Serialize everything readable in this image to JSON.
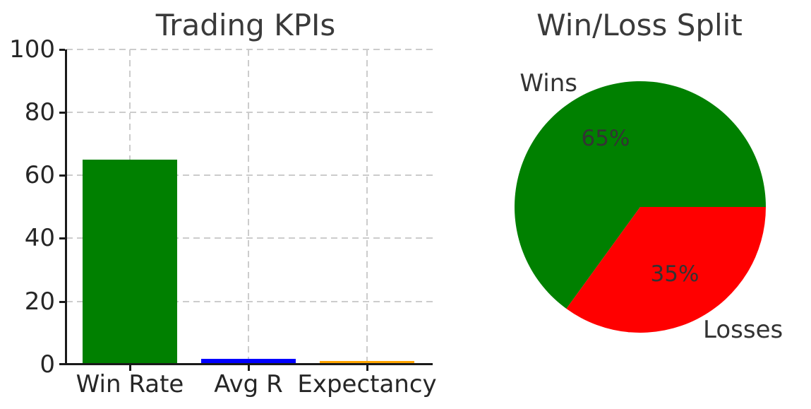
{
  "figure": {
    "background": "#ffffff",
    "text_color": "#333333"
  },
  "chart_data": [
    {
      "type": "bar",
      "title": "Trading KPIs",
      "categories": [
        "Win Rate",
        "Avg R",
        "Expectancy"
      ],
      "values": [
        65,
        1.7,
        1.2
      ],
      "bar_colors": [
        "#008000",
        "#0000ff",
        "#ffa500"
      ],
      "xlabel": "",
      "ylabel": "",
      "ylim": [
        0,
        100
      ],
      "yticks": [
        0,
        20,
        40,
        60,
        80,
        100
      ],
      "grid": "dashed, light gray, horizontal at yticks and vertical at bar centers",
      "spines": "left and bottom only, black"
    },
    {
      "type": "pie",
      "title": "Win/Loss Split",
      "labels": [
        "Wins",
        "Losses"
      ],
      "values": [
        65,
        35
      ],
      "pct_labels": [
        "65%",
        "35%"
      ],
      "slice_colors": [
        "#008000",
        "#ff0000"
      ],
      "startangle": 0,
      "counterclock": true,
      "legend_position": "none, direct wedge labels outside, percent labels inside"
    }
  ]
}
